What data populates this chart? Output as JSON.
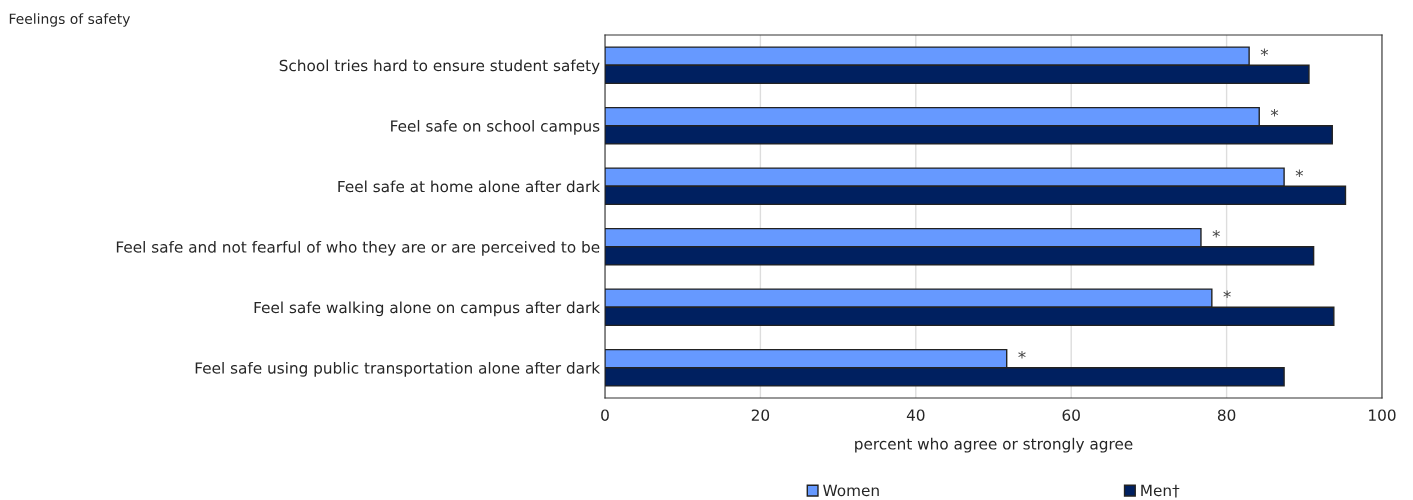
{
  "chart_data": {
    "type": "bar",
    "orientation": "horizontal",
    "ylabel": "Feelings of safety",
    "xlabel": "percent who agree or strongly agree",
    "categories": [
      "School tries hard to ensure student safety",
      "Feel safe on school campus",
      "Feel safe at home alone after dark",
      "Feel safe and not fearful of who they are or are perceived to be",
      "Feel safe walking alone on campus after dark",
      "Feel safe using public transportation alone after dark"
    ],
    "series": [
      {
        "name": "Women",
        "color": "#6699ff",
        "values": [
          82.9,
          84.2,
          87.4,
          76.7,
          78.1,
          51.7
        ]
      },
      {
        "name": "Men†",
        "color": "#002060",
        "values": [
          90.6,
          93.6,
          95.3,
          91.2,
          93.8,
          87.4
        ]
      }
    ],
    "annotations": [
      {
        "text": "*",
        "x": 82.9,
        "y": "School tries hard to ensure student safety"
      },
      {
        "text": "*",
        "x": 84.2,
        "y": "Feel safe on school campus"
      },
      {
        "text": "*",
        "x": 87.4,
        "y": "Feel safe at home alone after dark"
      },
      {
        "text": "*",
        "x": 76.7,
        "y": "Feel safe and not fearful of who they are or are perceived to be"
      },
      {
        "text": "*",
        "x": 78.1,
        "y": "Feel safe walking alone on campus after dark"
      },
      {
        "text": "*",
        "x": 51.7,
        "y": "Feel safe using public transportation alone after dark"
      }
    ],
    "xlim": [
      0,
      100
    ],
    "xticks": [
      0,
      20,
      40,
      60,
      80,
      100
    ],
    "grid": "x",
    "legend": "bottom"
  }
}
